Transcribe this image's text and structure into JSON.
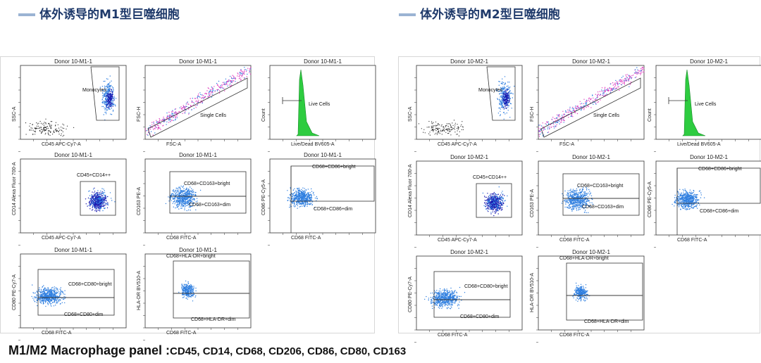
{
  "titles": {
    "m1": "体外诱导的M1型巨噬细胞",
    "m2": "体外诱导的M2型巨噬细胞"
  },
  "footer": {
    "lead": "M1/M2 Macrophage panel :",
    "markers": "CD45, CD14, CD68, CD206, CD86, CD80, CD163"
  },
  "colors": {
    "title": "#1f3a6b",
    "dots": "#2f7fe0",
    "dense": "#1a1ab0",
    "green": "#2ecc40",
    "magenta": "#e040c0",
    "black": "#222222"
  },
  "m1": {
    "p1": {
      "title": "Donor 10-M1-1",
      "x": "CD45 APC-Cy7-A",
      "y": "SSC-A",
      "gate": "Monocytes"
    },
    "p2": {
      "title": "Donor 10-M1-1",
      "x": "FSC-A",
      "y": "FSC-H",
      "gate": "Single Cells"
    },
    "p3": {
      "title": "Donor 10-M1-1",
      "x": "Live/Dead BV605-A",
      "y": "Count",
      "gate": "Live Cells"
    },
    "p4": {
      "title": "Donor 10-M1-1",
      "x": "CD45 APC-Cy7-A",
      "y": "CD14 Alexa Fluor 700-A",
      "gate": "CD45+CD14++"
    },
    "p5": {
      "title": "Donor 10-M1-1",
      "x": "CD68 FITC-A",
      "y": "CD163 PE-A",
      "gate": "CD68+CD163+bright",
      "gate2": "CD68+CD163+dim"
    },
    "p6": {
      "title": "Donor 10-M1-1",
      "x": "CD68 FITC-A",
      "y": "CD86 PE-Cy5-A",
      "gate": "CD68+CD86+bright",
      "gate2": "CD68+CD86+dim"
    },
    "p7": {
      "title": "Donor 10-M1-1",
      "x": "CD68 FITC-A",
      "y": "CD80 PE-Cy7-A",
      "gate": "CD68+CD80+bright",
      "gate2": "CD68+CD80+dim"
    },
    "p8": {
      "title": "Donor 10-M1-1",
      "x": "CD68 FITC-A",
      "y": "HLA-DR BV510-A",
      "gate": "CD68+HLA-DR+bright",
      "gate2": "CD68+HLA-DR+dim"
    }
  },
  "m2": {
    "p1": {
      "title": "Donor 10-M2-1",
      "x": "CD45 APC-Cy7-A",
      "y": "SSC-A",
      "gate": "Monocytes"
    },
    "p2": {
      "title": "Donor 10-M2-1",
      "x": "FSC-A",
      "y": "FSC-H",
      "gate": "Single Cells"
    },
    "p3": {
      "title": "Donor 10-M2-1",
      "x": "Live/Dead BV605-A",
      "y": "Count",
      "gate": "Live Cells"
    },
    "p4": {
      "title": "Donor 10-M2-1",
      "x": "CD45 APC-Cy7-A",
      "y": "CD14 Alexa Fluor 700-A",
      "gate": "CD45+CD14++"
    },
    "p5": {
      "title": "Donor 10-M2-1",
      "x": "CD68 FITC-A",
      "y": "CD163 PE-A",
      "gate": "CD68+CD163+bright",
      "gate2": "CD68+CD163+dim"
    },
    "p6": {
      "title": "Donor 10-M2-1",
      "x": "CD68 FITC-A",
      "y": "CD86 PE-Cy5-A",
      "gate": "CD68+CD86+bright",
      "gate2": "CD68+CD86+dim"
    },
    "p7": {
      "title": "Donor 10-M2-1",
      "x": "CD68 FITC-A",
      "y": "CD80 PE-Cy7-A",
      "gate": "CD68+CD80+bright",
      "gate2": "CD68+CD80+dim"
    },
    "p8": {
      "title": "Donor 10-M2-1",
      "x": "CD68 FITC-A",
      "y": "HLA-DR BV510-A",
      "gate": "CD68+HLA-DR+bright",
      "gate2": "CD68+HLA-DR+dim"
    }
  }
}
